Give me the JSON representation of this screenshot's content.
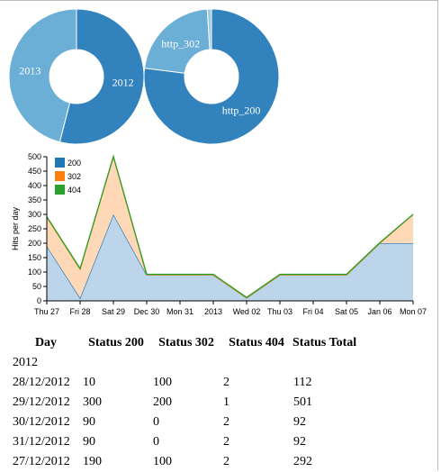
{
  "chart_data": [
    {
      "type": "pie",
      "variant": "donut",
      "labels": [
        "2012",
        "2013"
      ],
      "values": [
        54,
        46
      ],
      "colors": [
        "#3182bd",
        "#6baed6"
      ]
    },
    {
      "type": "pie",
      "variant": "donut",
      "labels": [
        "http_200",
        "http_302",
        "http_404"
      ],
      "values": [
        77,
        22,
        1
      ],
      "colors": [
        "#3182bd",
        "#6baed6",
        "#9ecae1"
      ],
      "shown_labels": [
        "http_200",
        "http_302",
        ""
      ]
    },
    {
      "type": "area",
      "stacked": true,
      "categories": [
        "Thu 27",
        "Fri 28",
        "Sat 29",
        "Dec 30",
        "Mon 31",
        "2013",
        "Wed 02",
        "Thu 03",
        "Fri 04",
        "Sat 05",
        "Jan 06",
        "Mon 07"
      ],
      "series": [
        {
          "name": "200",
          "values": [
            190,
            10,
            300,
            90,
            90,
            90,
            10,
            90,
            90,
            90,
            200,
            200
          ],
          "color": "#1f77b4"
        },
        {
          "name": "302",
          "values": [
            100,
            100,
            200,
            0,
            0,
            0,
            0,
            0,
            0,
            0,
            0,
            100
          ],
          "color": "#ff7f0e"
        },
        {
          "name": "404",
          "values": [
            2,
            2,
            1,
            2,
            2,
            2,
            2,
            2,
            2,
            2,
            2,
            0
          ],
          "color": "#2ca02c"
        }
      ],
      "ylabel": "Hits per day",
      "ylim": [
        0,
        500
      ],
      "yticks": [
        0,
        50,
        100,
        150,
        200,
        250,
        300,
        350,
        400,
        450,
        500
      ],
      "legend": "top-left",
      "grid": false
    }
  ],
  "table": {
    "headers": [
      "Day",
      "Status 200",
      "Status 302",
      "Status 404",
      "Status Total"
    ],
    "group": "2012",
    "rows": [
      [
        "28/12/2012",
        "10",
        "100",
        "2",
        "112"
      ],
      [
        "29/12/2012",
        "300",
        "200",
        "1",
        "501"
      ],
      [
        "30/12/2012",
        "90",
        "0",
        "2",
        "92"
      ],
      [
        "31/12/2012",
        "90",
        "0",
        "2",
        "92"
      ],
      [
        "27/12/2012",
        "190",
        "100",
        "2",
        "292"
      ]
    ]
  }
}
